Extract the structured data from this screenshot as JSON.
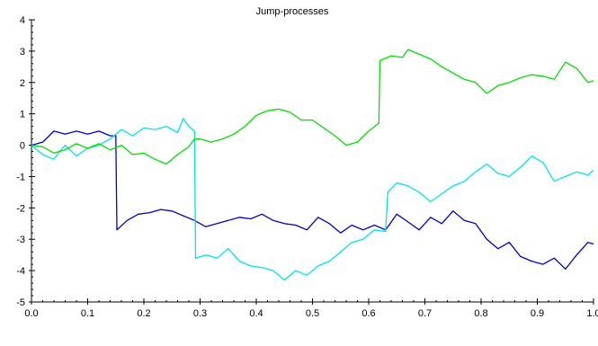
{
  "chart_data": {
    "type": "line",
    "title": "Jump-processes",
    "xlabel": "",
    "ylabel": "",
    "xlim": [
      0.0,
      1.0
    ],
    "ylim": [
      -5,
      4
    ],
    "x_ticks": [
      "0.0",
      "0.1",
      "0.2",
      "0.3",
      "0.4",
      "0.5",
      "0.6",
      "0.7",
      "0.8",
      "0.9",
      "1.0"
    ],
    "y_ticks": [
      "4",
      "3",
      "2",
      "1",
      "0",
      "-1",
      "-2",
      "-3",
      "-4",
      "-5"
    ],
    "grid": false,
    "legend": "none",
    "series": [
      {
        "color": "#0000d0",
        "x": [
          0.0,
          0.02,
          0.04,
          0.06,
          0.08,
          0.1,
          0.12,
          0.14,
          0.15,
          0.152,
          0.17,
          0.19,
          0.21,
          0.23,
          0.25,
          0.27,
          0.29,
          0.31,
          0.33,
          0.35,
          0.37,
          0.39,
          0.41,
          0.43,
          0.45,
          0.47,
          0.49,
          0.51,
          0.53,
          0.55,
          0.57,
          0.59,
          0.61,
          0.63,
          0.65,
          0.67,
          0.69,
          0.71,
          0.73,
          0.75,
          0.77,
          0.79,
          0.81,
          0.83,
          0.85,
          0.87,
          0.89,
          0.91,
          0.93,
          0.95,
          0.97,
          0.99,
          1.0
        ],
        "y": [
          0.0,
          0.1,
          0.45,
          0.35,
          0.45,
          0.35,
          0.45,
          0.3,
          0.3,
          -2.7,
          -2.4,
          -2.2,
          -2.15,
          -2.05,
          -2.1,
          -2.25,
          -2.4,
          -2.6,
          -2.5,
          -2.4,
          -2.3,
          -2.35,
          -2.2,
          -2.4,
          -2.5,
          -2.55,
          -2.7,
          -2.3,
          -2.5,
          -2.8,
          -2.55,
          -2.7,
          -2.55,
          -2.7,
          -2.2,
          -2.45,
          -2.7,
          -2.3,
          -2.5,
          -2.1,
          -2.4,
          -2.5,
          -3.0,
          -3.3,
          -3.1,
          -3.55,
          -3.7,
          -3.8,
          -3.6,
          -3.95,
          -3.5,
          -3.1,
          -3.15
        ]
      },
      {
        "color": "#00e5e5",
        "x": [
          0.0,
          0.02,
          0.04,
          0.05,
          0.06,
          0.08,
          0.1,
          0.12,
          0.14,
          0.16,
          0.18,
          0.2,
          0.22,
          0.24,
          0.26,
          0.27,
          0.28,
          0.29,
          0.292,
          0.31,
          0.33,
          0.35,
          0.37,
          0.39,
          0.41,
          0.43,
          0.45,
          0.47,
          0.49,
          0.51,
          0.53,
          0.55,
          0.57,
          0.59,
          0.61,
          0.63,
          0.634,
          0.65,
          0.67,
          0.69,
          0.71,
          0.73,
          0.75,
          0.77,
          0.79,
          0.81,
          0.83,
          0.85,
          0.87,
          0.89,
          0.91,
          0.93,
          0.95,
          0.97,
          0.99,
          1.0
        ],
        "y": [
          0.0,
          -0.3,
          -0.45,
          -0.2,
          0.0,
          -0.35,
          -0.1,
          0.0,
          0.2,
          0.5,
          0.3,
          0.55,
          0.5,
          0.6,
          0.4,
          0.85,
          0.6,
          0.45,
          -3.6,
          -3.5,
          -3.6,
          -3.3,
          -3.7,
          -3.85,
          -3.9,
          -4.0,
          -4.3,
          -4.0,
          -4.15,
          -3.85,
          -3.7,
          -3.4,
          -3.1,
          -3.0,
          -2.7,
          -2.75,
          -1.5,
          -1.2,
          -1.3,
          -1.5,
          -1.8,
          -1.55,
          -1.3,
          -1.15,
          -0.85,
          -0.6,
          -0.9,
          -1.0,
          -0.7,
          -0.35,
          -0.55,
          -1.15,
          -1.0,
          -0.85,
          -0.95,
          -0.8
        ]
      },
      {
        "color": "#00e000",
        "x": [
          0.0,
          0.02,
          0.04,
          0.06,
          0.08,
          0.1,
          0.12,
          0.14,
          0.16,
          0.18,
          0.2,
          0.22,
          0.24,
          0.26,
          0.28,
          0.29,
          0.3,
          0.32,
          0.34,
          0.36,
          0.38,
          0.4,
          0.42,
          0.44,
          0.46,
          0.48,
          0.5,
          0.52,
          0.54,
          0.56,
          0.58,
          0.6,
          0.618,
          0.62,
          0.64,
          0.66,
          0.67,
          0.69,
          0.71,
          0.73,
          0.75,
          0.77,
          0.79,
          0.81,
          0.83,
          0.85,
          0.87,
          0.89,
          0.91,
          0.93,
          0.95,
          0.97,
          0.99,
          1.0
        ],
        "y": [
          0.0,
          -0.05,
          -0.25,
          -0.15,
          0.05,
          -0.1,
          0.05,
          -0.15,
          0.0,
          -0.3,
          -0.25,
          -0.45,
          -0.6,
          -0.3,
          -0.05,
          0.2,
          0.2,
          0.1,
          0.2,
          0.35,
          0.6,
          0.95,
          1.1,
          1.15,
          1.05,
          0.8,
          0.8,
          0.55,
          0.3,
          0.0,
          0.1,
          0.45,
          0.7,
          2.7,
          2.85,
          2.8,
          3.05,
          2.9,
          2.75,
          2.5,
          2.3,
          2.1,
          2.0,
          1.65,
          1.9,
          2.0,
          2.15,
          2.25,
          2.2,
          2.1,
          2.65,
          2.45,
          2.0,
          2.05
        ]
      }
    ]
  }
}
